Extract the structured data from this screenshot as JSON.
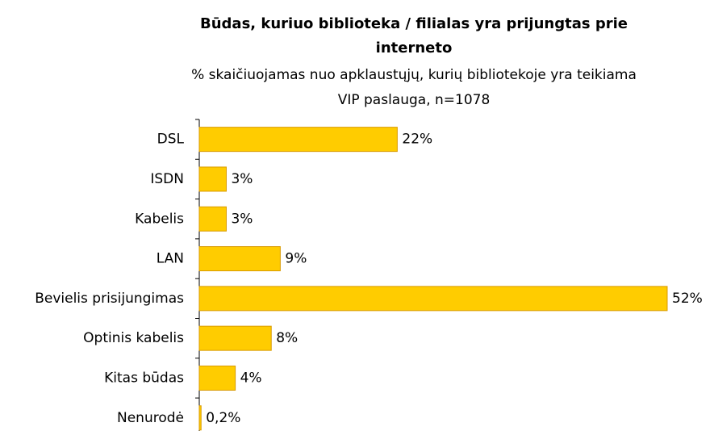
{
  "chart_data": {
    "type": "bar",
    "orientation": "horizontal",
    "title": [
      "Būdas, kuriuo biblioteka / filialas yra prijungtas prie",
      "interneto"
    ],
    "subtitle": [
      "% skaičiuojamas nuo apklaustųjų, kurių bibliotekoje yra teikiama",
      "VIP paslauga, n=1078"
    ],
    "categories": [
      "DSL",
      "ISDN",
      "Kabelis",
      "LAN",
      "Bevielis prisijungimas",
      "Optinis kabelis",
      "Kitas būdas",
      "Nenurodė"
    ],
    "values": [
      22,
      3,
      3,
      9,
      52,
      8,
      4,
      0.2
    ],
    "value_labels": [
      "22%",
      "3%",
      "3%",
      "9%",
      "52%",
      "8%",
      "4%",
      "0,2%"
    ],
    "color": "#ffcc00",
    "edge_color": "#d99a00"
  }
}
